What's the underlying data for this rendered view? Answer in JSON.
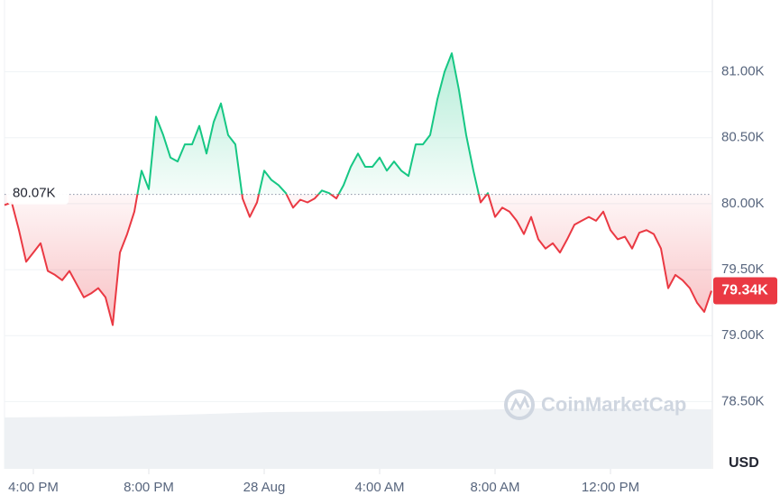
{
  "chart_data": {
    "type": "line",
    "values": [
      79990,
      80010,
      79800,
      79560,
      79630,
      79700,
      79490,
      79460,
      79420,
      79490,
      79390,
      79290,
      79320,
      79360,
      79290,
      79080,
      79630,
      79770,
      79940,
      80250,
      80110,
      80660,
      80520,
      80350,
      80320,
      80450,
      80450,
      80590,
      80380,
      80620,
      80760,
      80520,
      80450,
      80040,
      79900,
      80010,
      80250,
      80180,
      80140,
      80080,
      79970,
      80030,
      80010,
      80040,
      80100,
      80080,
      80040,
      80140,
      80280,
      80380,
      80280,
      80280,
      80350,
      80250,
      80320,
      80250,
      80210,
      80450,
      80450,
      80520,
      80790,
      81000,
      81140,
      80860,
      80520,
      80250,
      80010,
      80080,
      79900,
      79970,
      79940,
      79870,
      79770,
      79900,
      79730,
      79660,
      79700,
      79630,
      79730,
      79840,
      79870,
      79900,
      79870,
      79940,
      79800,
      79730,
      79750,
      79660,
      79780,
      79800,
      79770,
      79660,
      79360,
      79460,
      79420,
      79360,
      79250,
      79180,
      79340
    ],
    "color_up": "#16c784",
    "color_down": "#ea3943",
    "baseline": {
      "value": 80070,
      "label": "80.07K"
    },
    "last_price_label": "79.34K",
    "xlim": [
      0,
      98
    ],
    "xticks": [
      {
        "value": 4,
        "label": "4:00 PM"
      },
      {
        "value": 20,
        "label": "8:00 PM"
      },
      {
        "value": 36,
        "label": "28 Aug"
      },
      {
        "value": 52,
        "label": "4:00 AM"
      },
      {
        "value": 68,
        "label": "8:00 AM"
      },
      {
        "value": 84,
        "label": "12:00 PM"
      }
    ],
    "ylim": [
      77990,
      81510
    ],
    "yticks": [
      {
        "value": 78500,
        "label": "78.50K"
      },
      {
        "value": 79000,
        "label": "79.00K"
      },
      {
        "value": 79500,
        "label": "79.50K"
      },
      {
        "value": 80000,
        "label": "80.00K"
      },
      {
        "value": 80500,
        "label": "80.50K"
      },
      {
        "value": 81000,
        "label": "81.00K"
      }
    ],
    "grid": true,
    "currency": "USD",
    "watermark": "CoinMarketCap"
  }
}
